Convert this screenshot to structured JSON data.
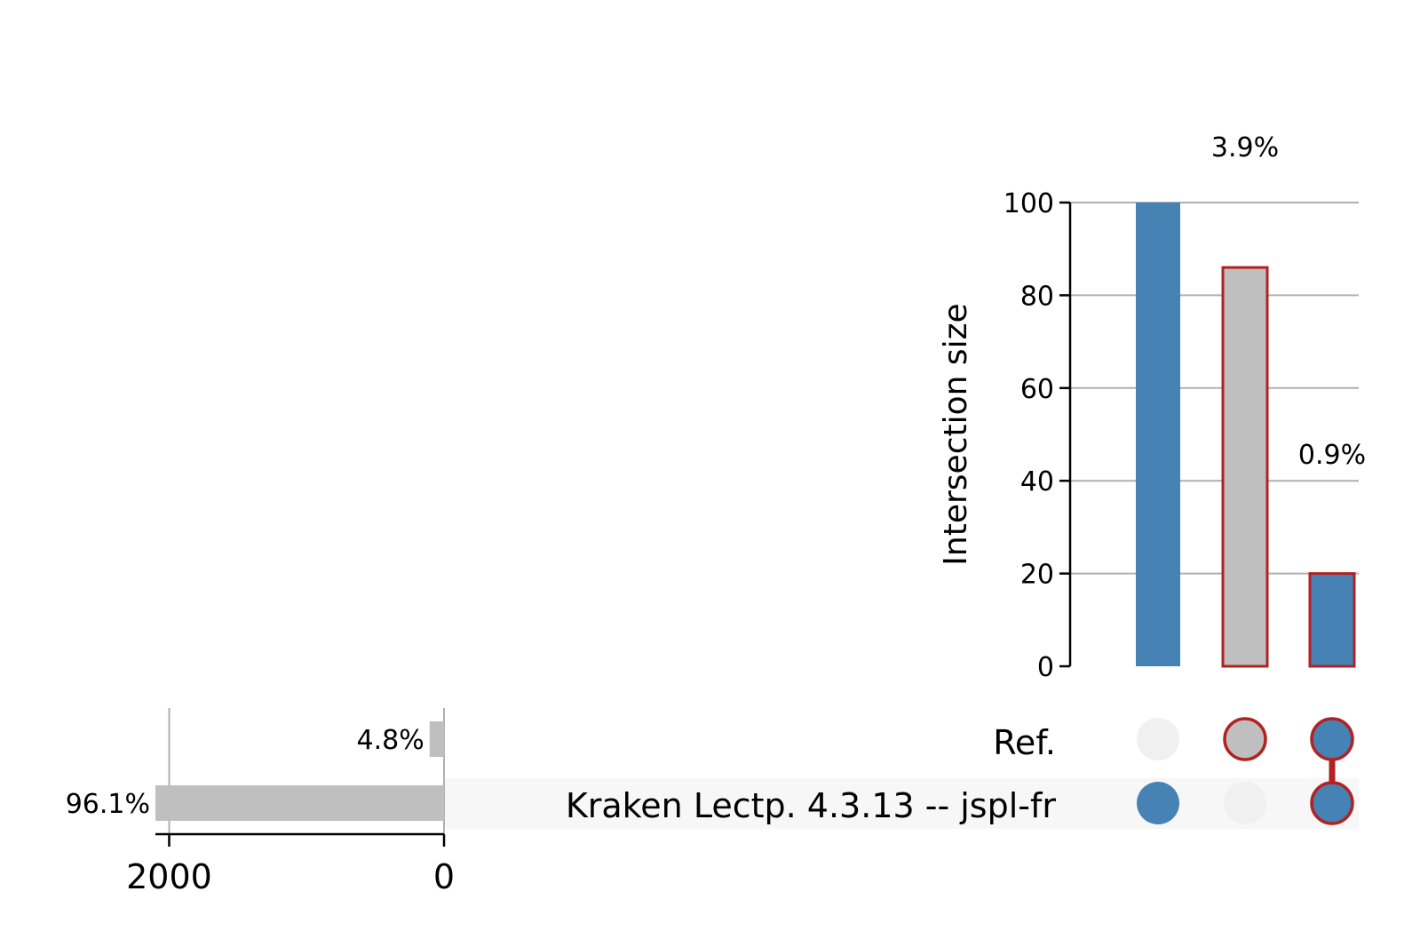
{
  "chart_data": {
    "type": "upset",
    "title": "",
    "intersections": {
      "ylabel": "Intersection size",
      "ylim": [
        0,
        100
      ],
      "yticks": [
        "0",
        "20",
        "40",
        "60",
        "80",
        "100"
      ],
      "grid": true,
      "bars": [
        {
          "value": 100,
          "label": "",
          "sets": [
            "Kraken Lectp. 4.3.13 -- jspl-fr"
          ],
          "fill": "#4682b4",
          "edge": ""
        },
        {
          "value": 86,
          "label": "3.9%",
          "sets": [
            "Ref."
          ],
          "fill": "#bfbfbf",
          "edge": "#b22222"
        },
        {
          "value": 20,
          "label": "0.9%",
          "sets": [
            "Ref.",
            "Kraken Lectp. 4.3.13 -- jspl-fr"
          ],
          "fill": "#4682b4",
          "edge": "#b22222"
        }
      ]
    },
    "sets": {
      "names": [
        "Ref.",
        "Kraken Lectp. 4.3.13 -- jspl-fr"
      ],
      "sizes": [
        105,
        2100
      ],
      "size_labels": [
        "4.8%",
        "96.1%"
      ],
      "xlim": [
        0,
        2100
      ],
      "xticks": [
        "2000",
        "0"
      ],
      "xtick_values": [
        2000,
        0
      ],
      "xaxis": "reversed"
    },
    "colors": {
      "active": "#4682b4",
      "highlight_edge": "#b22222",
      "inactive_dot": "#f0f0f0",
      "set_bar": "#bfbfbf",
      "grid": "#b0b0b0",
      "row_shade": "#f7f7f7"
    }
  }
}
